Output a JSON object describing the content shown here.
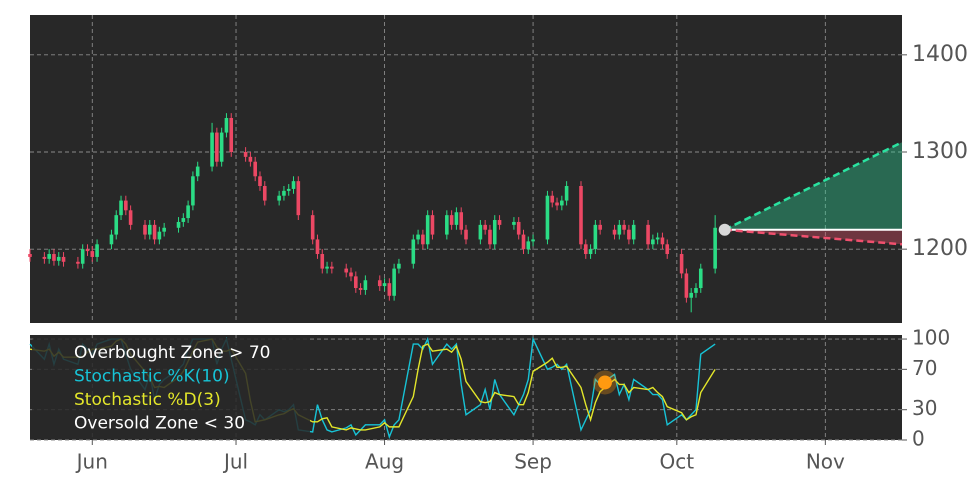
{
  "chart_data": [
    {
      "type": "candlestick",
      "x": [
        0,
        3,
        4,
        5,
        6,
        7,
        10,
        11,
        12,
        13,
        14,
        17,
        18,
        19,
        20,
        21,
        24,
        25,
        26,
        27,
        28,
        31,
        32,
        33,
        34,
        35,
        38,
        39,
        40,
        41,
        42,
        45,
        46,
        47,
        48,
        49,
        52,
        53,
        54,
        55,
        56,
        59,
        60,
        61,
        62,
        63,
        66,
        67,
        68,
        69,
        70,
        73,
        74,
        75,
        76,
        77,
        80,
        81,
        82,
        83,
        84,
        87,
        88,
        89,
        90,
        91,
        94,
        95,
        96,
        97,
        98,
        101,
        102,
        103,
        104,
        105,
        108,
        109,
        110,
        111,
        112,
        115,
        116,
        117,
        118,
        119,
        122,
        123,
        124,
        125,
        126,
        129,
        130,
        131,
        132,
        133,
        136,
        137,
        138,
        139,
        140,
        143
      ],
      "open": [
        1195,
        1192,
        1190,
        1195,
        1188,
        1192,
        1187,
        1185,
        1200,
        1198,
        1192,
        1205,
        1215,
        1235,
        1250,
        1240,
        1225,
        1215,
        1225,
        1210,
        1218,
        1222,
        1228,
        1232,
        1245,
        1275,
        1285,
        1320,
        1290,
        1320,
        1335,
        1300,
        1295,
        1290,
        1275,
        1265,
        1250,
        1255,
        1260,
        1262,
        1270,
        1235,
        1210,
        1195,
        1180,
        1182,
        1180,
        1176,
        1172,
        1160,
        1158,
        1168,
        1162,
        1165,
        1152,
        1180,
        1185,
        1210,
        1215,
        1205,
        1235,
        1215,
        1235,
        1225,
        1238,
        1220,
        1210,
        1225,
        1220,
        1205,
        1230,
        1225,
        1228,
        1215,
        1200,
        1208,
        1210,
        1255,
        1248,
        1245,
        1250,
        1265,
        1205,
        1195,
        1200,
        1225,
        1220,
        1215,
        1225,
        1220,
        1210,
        1225,
        1205,
        1210,
        1212,
        1205,
        1195,
        1175,
        1150,
        1155,
        1160,
        1180
      ],
      "high": [
        1200,
        1197,
        1200,
        1200,
        1197,
        1197,
        1192,
        1205,
        1205,
        1203,
        1210,
        1220,
        1240,
        1255,
        1255,
        1245,
        1230,
        1230,
        1230,
        1223,
        1227,
        1233,
        1237,
        1250,
        1280,
        1290,
        1330,
        1325,
        1325,
        1340,
        1340,
        1305,
        1300,
        1295,
        1280,
        1270,
        1260,
        1265,
        1267,
        1275,
        1275,
        1240,
        1215,
        1200,
        1187,
        1187,
        1185,
        1181,
        1177,
        1165,
        1173,
        1173,
        1170,
        1170,
        1185,
        1190,
        1215,
        1220,
        1220,
        1240,
        1240,
        1240,
        1240,
        1243,
        1243,
        1225,
        1230,
        1230,
        1225,
        1235,
        1235,
        1233,
        1233,
        1220,
        1213,
        1215,
        1260,
        1260,
        1253,
        1255,
        1270,
        1270,
        1210,
        1205,
        1230,
        1230,
        1225,
        1230,
        1230,
        1225,
        1230,
        1230,
        1215,
        1217,
        1217,
        1210,
        1200,
        1180,
        1160,
        1165,
        1185,
        1235
      ],
      "low": [
        1187,
        1185,
        1185,
        1183,
        1183,
        1182,
        1180,
        1180,
        1193,
        1187,
        1187,
        1200,
        1210,
        1230,
        1235,
        1220,
        1210,
        1210,
        1205,
        1205,
        1213,
        1217,
        1223,
        1227,
        1240,
        1270,
        1280,
        1285,
        1285,
        1315,
        1295,
        1290,
        1285,
        1270,
        1260,
        1245,
        1245,
        1250,
        1255,
        1257,
        1230,
        1205,
        1190,
        1175,
        1175,
        1175,
        1171,
        1167,
        1155,
        1153,
        1153,
        1157,
        1157,
        1147,
        1147,
        1175,
        1180,
        1205,
        1200,
        1200,
        1210,
        1210,
        1220,
        1220,
        1215,
        1205,
        1205,
        1215,
        1200,
        1200,
        1220,
        1220,
        1210,
        1195,
        1195,
        1203,
        1205,
        1243,
        1240,
        1240,
        1245,
        1200,
        1190,
        1190,
        1195,
        1215,
        1210,
        1210,
        1215,
        1205,
        1205,
        1200,
        1200,
        1205,
        1200,
        1190,
        1170,
        1145,
        1135,
        1150,
        1155,
        1175
      ],
      "close": [
        1192,
        1190,
        1195,
        1188,
        1192,
        1187,
        1185,
        1200,
        1198,
        1192,
        1205,
        1215,
        1235,
        1250,
        1240,
        1225,
        1215,
        1225,
        1210,
        1218,
        1222,
        1228,
        1232,
        1245,
        1275,
        1285,
        1320,
        1290,
        1320,
        1335,
        1300,
        1295,
        1290,
        1275,
        1265,
        1250,
        1255,
        1260,
        1262,
        1270,
        1235,
        1210,
        1195,
        1180,
        1182,
        1180,
        1176,
        1172,
        1160,
        1158,
        1168,
        1162,
        1165,
        1152,
        1180,
        1185,
        1210,
        1215,
        1205,
        1235,
        1215,
        1235,
        1225,
        1238,
        1220,
        1210,
        1225,
        1220,
        1205,
        1230,
        1225,
        1228,
        1215,
        1200,
        1208,
        1210,
        1255,
        1248,
        1245,
        1250,
        1265,
        1205,
        1195,
        1200,
        1225,
        1220,
        1215,
        1225,
        1220,
        1210,
        1225,
        1205,
        1210,
        1212,
        1205,
        1195,
        1175,
        1150,
        1155,
        1160,
        1180,
        1222
      ],
      "up_color": "#2bdc85",
      "down_color": "#ec4864",
      "forecast": {
        "x": [
          145,
          182
        ],
        "base": [
          1220,
          1220
        ],
        "upper": [
          1220,
          1310
        ],
        "lower": [
          1220,
          1205
        ],
        "upper_color": "#2ae3a0",
        "lower_color": "#f0506e"
      },
      "xlim": [
        0,
        182
      ],
      "ylim": [
        1124,
        1441
      ],
      "yticks": [
        1200,
        1300,
        1400
      ],
      "grid": true
    },
    {
      "type": "line",
      "x": [
        0,
        3,
        4,
        5,
        6,
        7,
        10,
        11,
        12,
        13,
        14,
        17,
        18,
        19,
        20,
        21,
        24,
        25,
        26,
        27,
        28,
        31,
        32,
        33,
        34,
        35,
        38,
        39,
        40,
        41,
        42,
        45,
        46,
        47,
        48,
        49,
        52,
        53,
        54,
        55,
        56,
        59,
        60,
        61,
        62,
        63,
        66,
        67,
        68,
        69,
        70,
        73,
        74,
        75,
        76,
        77,
        80,
        81,
        82,
        83,
        84,
        87,
        88,
        89,
        90,
        91,
        94,
        95,
        96,
        97,
        98,
        101,
        102,
        103,
        104,
        105,
        108,
        109,
        110,
        111,
        112,
        115,
        116,
        117,
        118,
        119,
        122,
        123,
        124,
        125,
        126,
        129,
        130,
        131,
        132,
        133,
        136,
        137,
        138,
        139,
        140,
        143
      ],
      "series": [
        {
          "name": "Stochastic %K(10)",
          "color": "#17c3d6",
          "values": [
            95,
            80,
            95,
            75,
            90,
            80,
            75,
            95,
            90,
            85,
            95,
            100,
            100,
            100,
            85,
            70,
            50,
            65,
            40,
            55,
            60,
            70,
            75,
            90,
            100,
            100,
            100,
            75,
            90,
            100,
            80,
            20,
            18,
            15,
            25,
            20,
            30,
            28,
            30,
            35,
            10,
            8,
            35,
            20,
            10,
            8,
            12,
            15,
            5,
            10,
            15,
            15,
            20,
            3,
            15,
            20,
            95,
            95,
            90,
            100,
            75,
            95,
            90,
            95,
            55,
            25,
            35,
            50,
            30,
            60,
            45,
            25,
            35,
            45,
            60,
            100,
            70,
            72,
            75,
            70,
            75,
            10,
            20,
            30,
            60,
            55,
            65,
            45,
            55,
            40,
            60,
            50,
            45,
            45,
            40,
            15,
            25,
            20,
            25,
            30,
            85,
            95
          ]
        },
        {
          "name": "Stochastic %D(3)",
          "color": "#e3e62a",
          "values": [
            90,
            88,
            90,
            83,
            87,
            82,
            82,
            83,
            87,
            90,
            90,
            93,
            98,
            100,
            95,
            85,
            68,
            62,
            52,
            53,
            52,
            62,
            68,
            78,
            88,
            97,
            100,
            92,
            88,
            88,
            90,
            66,
            39,
            18,
            19,
            20,
            25,
            26,
            29,
            31,
            25,
            18,
            18,
            21,
            22,
            13,
            10,
            12,
            11,
            10,
            10,
            13,
            17,
            13,
            13,
            13,
            43,
            70,
            93,
            95,
            88,
            90,
            87,
            93,
            80,
            58,
            38,
            37,
            38,
            47,
            45,
            43,
            35,
            35,
            47,
            68,
            77,
            81,
            72,
            72,
            73,
            52,
            35,
            20,
            37,
            48,
            60,
            55,
            55,
            47,
            52,
            50,
            52,
            47,
            43,
            33,
            27,
            20,
            23,
            25,
            47,
            70
          ]
        }
      ],
      "annotations": [
        "Overbought Zone > 70",
        "Oversold Zone < 30"
      ],
      "signal": {
        "x": 120,
        "value": 57,
        "color": "#ff9a10"
      },
      "xlim": [
        0,
        182
      ],
      "xticks": [
        {
          "value": 13,
          "label": "Jun"
        },
        {
          "value": 43,
          "label": "Jul"
        },
        {
          "value": 74,
          "label": "Aug"
        },
        {
          "value": 105,
          "label": "Sep"
        },
        {
          "value": 135,
          "label": "Oct"
        },
        {
          "value": 166,
          "label": "Nov"
        }
      ],
      "ylim": [
        0,
        104
      ],
      "yticks": [
        0,
        30,
        70,
        100
      ],
      "grid": true
    }
  ]
}
